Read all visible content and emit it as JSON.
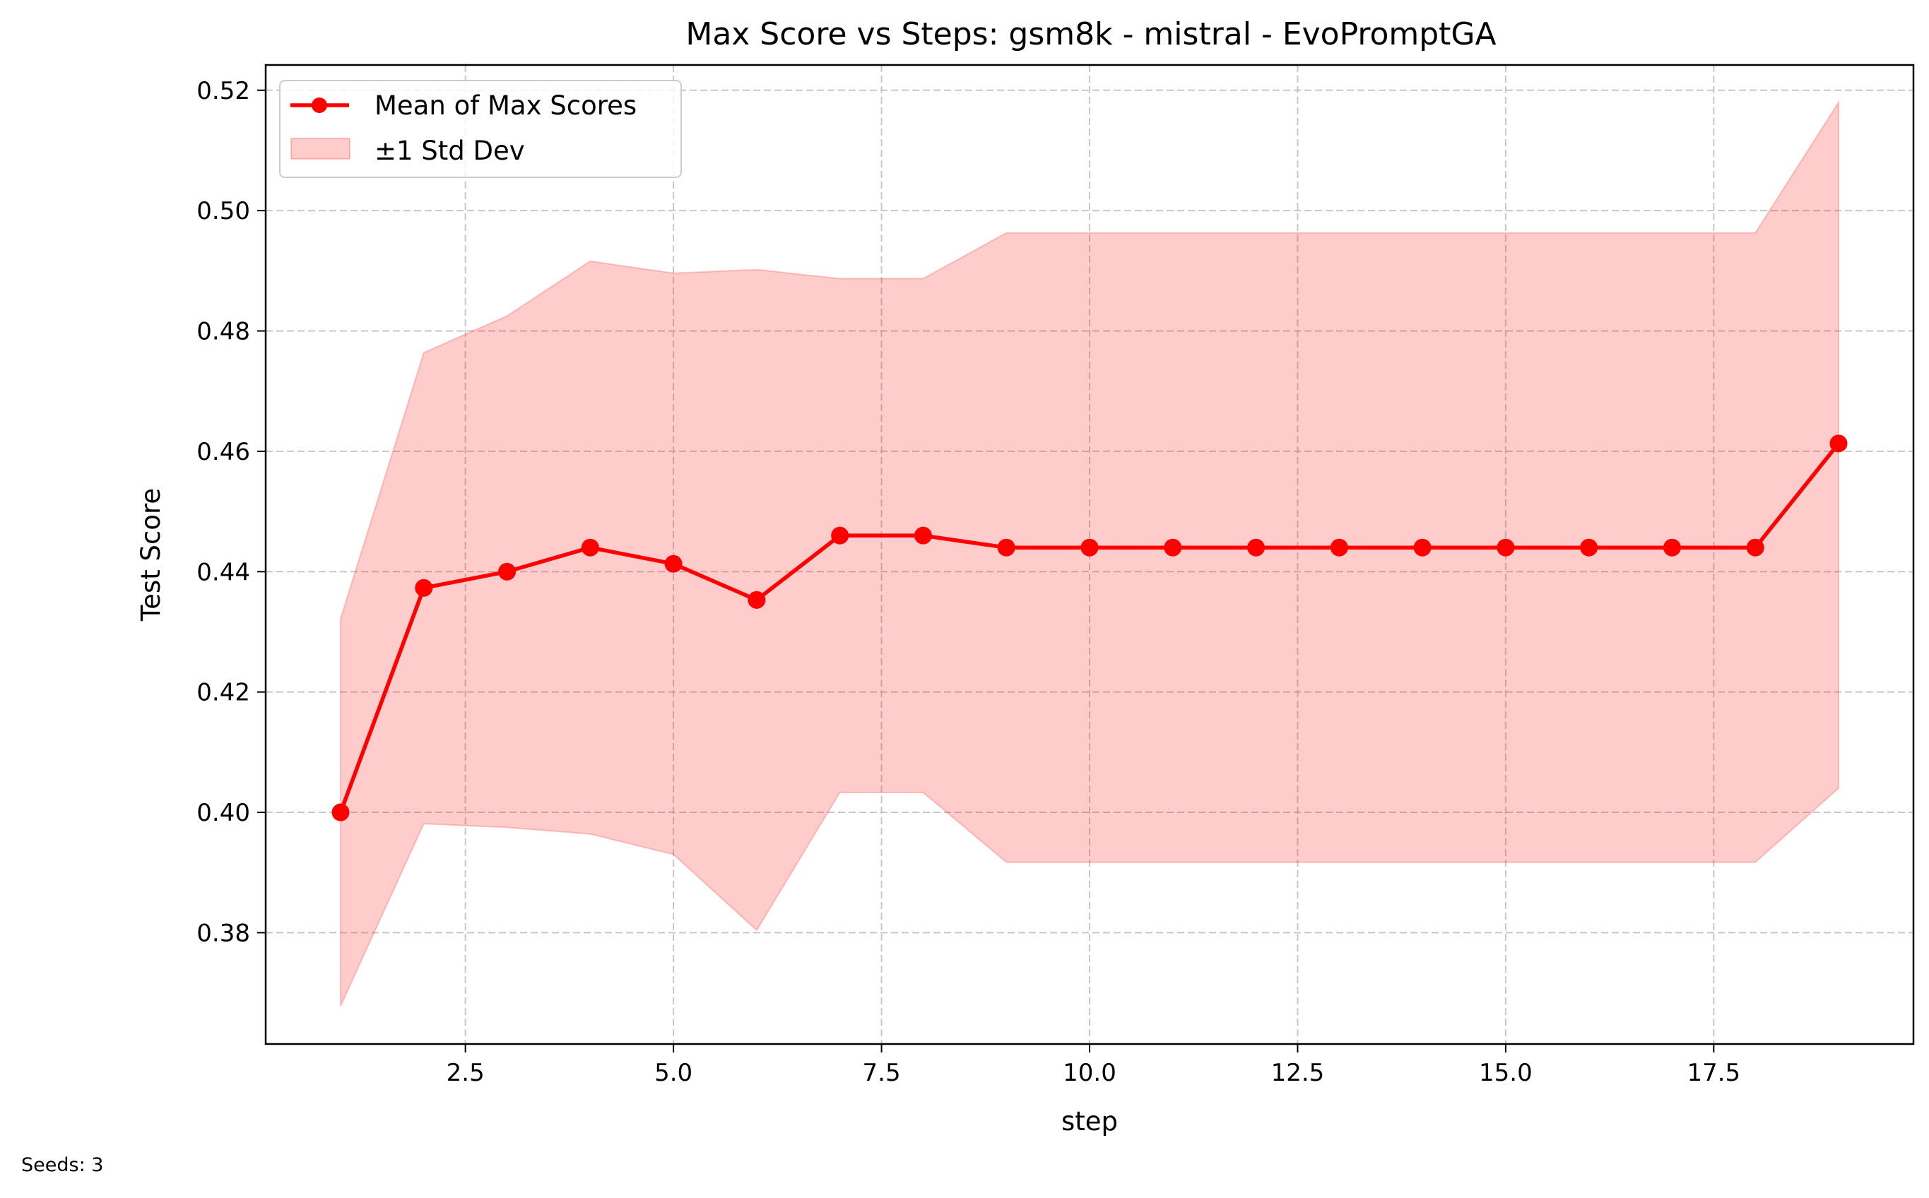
{
  "chart_data": {
    "type": "line",
    "title": "Max Score vs Steps: gsm8k - mistral - EvoPromptGA",
    "xlabel": "step",
    "ylabel": "Test Score",
    "xlim": [
      0.1,
      19.9
    ],
    "ylim": [
      0.3615,
      0.5242
    ],
    "x_ticks": [
      2.5,
      5.0,
      7.5,
      10.0,
      12.5,
      15.0,
      17.5
    ],
    "x_tick_labels": [
      "2.5",
      "5.0",
      "7.5",
      "10.0",
      "12.5",
      "15.0",
      "17.5"
    ],
    "y_ticks": [
      0.38,
      0.4,
      0.42,
      0.44,
      0.46,
      0.48,
      0.5,
      0.52
    ],
    "y_tick_labels": [
      "0.38",
      "0.40",
      "0.42",
      "0.44",
      "0.46",
      "0.48",
      "0.50",
      "0.52"
    ],
    "grid": true,
    "legend_position": "top-left",
    "x": [
      1,
      2,
      3,
      4,
      5,
      6,
      7,
      8,
      9,
      10,
      11,
      12,
      13,
      14,
      15,
      16,
      17,
      18,
      19
    ],
    "series": [
      {
        "name": "Mean of Max Scores",
        "color": "#ff0000",
        "marker": "circle",
        "values": [
          0.4,
          0.4373,
          0.44,
          0.444,
          0.4413,
          0.4353,
          0.446,
          0.446,
          0.444,
          0.444,
          0.444,
          0.444,
          0.444,
          0.444,
          0.444,
          0.444,
          0.444,
          0.444,
          0.4613
        ]
      }
    ],
    "band": {
      "name": "±1 Std Dev",
      "color": "#ff0000",
      "opacity": 0.2,
      "upper": [
        0.4322,
        0.4764,
        0.4825,
        0.4916,
        0.4896,
        0.4902,
        0.4887,
        0.4887,
        0.4963,
        0.4963,
        0.4963,
        0.4963,
        0.4963,
        0.4963,
        0.4963,
        0.4963,
        0.4963,
        0.4963,
        0.518
      ],
      "lower": [
        0.3678,
        0.3981,
        0.3975,
        0.3964,
        0.393,
        0.3804,
        0.4033,
        0.4033,
        0.3917,
        0.3917,
        0.3917,
        0.3917,
        0.3917,
        0.3917,
        0.3917,
        0.3917,
        0.3917,
        0.3917,
        0.404
      ]
    }
  },
  "footnote": "Seeds: 3"
}
